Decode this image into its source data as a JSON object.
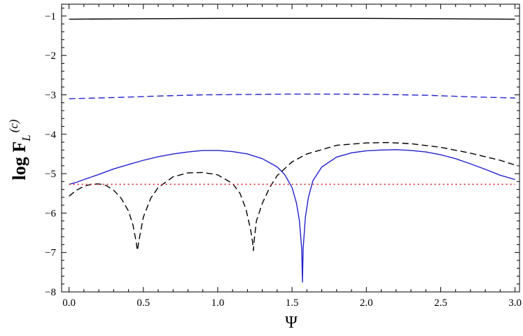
{
  "chart_data": {
    "type": "line",
    "title": "",
    "xlabel": "Ψ",
    "ylabel": {
      "text": "log F",
      "subscript": "L",
      "superscript": "(c)"
    },
    "xlim": [
      -0.05,
      3.03
    ],
    "ylim": [
      -8,
      -0.7
    ],
    "x_ticks": [
      {
        "value": 0.0,
        "label": "0.0"
      },
      {
        "value": 0.5,
        "label": "0.5"
      },
      {
        "value": 1.0,
        "label": "1.0"
      },
      {
        "value": 1.5,
        "label": "1.5"
      },
      {
        "value": 2.0,
        "label": "2.0"
      },
      {
        "value": 2.5,
        "label": "2.5"
      },
      {
        "value": 3.0,
        "label": "3.0"
      }
    ],
    "y_ticks": [
      {
        "value": -1,
        "label": "−1"
      },
      {
        "value": -2,
        "label": "−2"
      },
      {
        "value": -3,
        "label": "−3"
      },
      {
        "value": -4,
        "label": "−4"
      },
      {
        "value": -5,
        "label": "−5"
      },
      {
        "value": -6,
        "label": "−6"
      },
      {
        "value": -7,
        "label": "−7"
      },
      {
        "value": -8,
        "label": "−8"
      }
    ],
    "grid": false,
    "legend": "none",
    "series": [
      {
        "color": "#000000",
        "dash": "solid",
        "x": [
          0.0,
          0.5,
          1.0,
          1.5,
          2.0,
          2.5,
          3.0
        ],
        "y": [
          -1.08,
          -1.07,
          -1.06,
          -1.06,
          -1.06,
          -1.07,
          -1.08
        ]
      },
      {
        "color": "#2222cc",
        "dash": "dashed",
        "x": [
          0.0,
          0.3,
          0.6,
          0.9,
          1.2,
          1.5,
          1.8,
          2.1,
          2.4,
          2.7,
          3.0
        ],
        "y": [
          -3.1,
          -3.07,
          -3.03,
          -3.0,
          -2.99,
          -2.98,
          -2.98,
          -2.99,
          -3.01,
          -3.05,
          -3.08
        ]
      },
      {
        "color": "#2222cc",
        "dash": "solid",
        "x": [
          0.0,
          0.05,
          0.1,
          0.2,
          0.3,
          0.4,
          0.5,
          0.6,
          0.7,
          0.8,
          0.9,
          1.0,
          1.1,
          1.2,
          1.3,
          1.4,
          1.45,
          1.5,
          1.53,
          1.55,
          1.565,
          1.57,
          1.575,
          1.59,
          1.61,
          1.64,
          1.7,
          1.8,
          1.9,
          2.0,
          2.1,
          2.2,
          2.3,
          2.4,
          2.5,
          2.6,
          2.7,
          2.8,
          2.9,
          3.0
        ],
        "y": [
          -5.27,
          -5.22,
          -5.15,
          -5.02,
          -4.88,
          -4.77,
          -4.66,
          -4.57,
          -4.5,
          -4.45,
          -4.41,
          -4.41,
          -4.44,
          -4.5,
          -4.62,
          -4.83,
          -5.02,
          -5.35,
          -5.75,
          -6.2,
          -6.9,
          -7.75,
          -6.9,
          -6.1,
          -5.6,
          -5.18,
          -4.83,
          -4.58,
          -4.47,
          -4.42,
          -4.4,
          -4.39,
          -4.41,
          -4.45,
          -4.52,
          -4.62,
          -4.75,
          -4.89,
          -5.04,
          -5.15
        ]
      },
      {
        "color": "#000000",
        "dash": "dashed",
        "x": [
          0.0,
          0.05,
          0.1,
          0.15,
          0.2,
          0.25,
          0.3,
          0.35,
          0.4,
          0.43,
          0.45,
          0.46,
          0.47,
          0.5,
          0.55,
          0.6,
          0.7,
          0.8,
          0.9,
          1.0,
          1.1,
          1.15,
          1.19,
          1.22,
          1.235,
          1.24,
          1.245,
          1.26,
          1.3,
          1.35,
          1.4,
          1.5,
          1.6,
          1.8,
          2.0,
          2.15,
          2.3,
          2.5,
          2.7,
          2.9,
          3.0
        ],
        "y": [
          -5.57,
          -5.42,
          -5.32,
          -5.27,
          -5.26,
          -5.3,
          -5.42,
          -5.62,
          -5.95,
          -6.3,
          -6.7,
          -6.95,
          -6.7,
          -6.1,
          -5.62,
          -5.35,
          -5.08,
          -4.98,
          -4.97,
          -5.03,
          -5.25,
          -5.5,
          -5.9,
          -6.4,
          -6.75,
          -6.95,
          -6.7,
          -6.2,
          -5.75,
          -5.35,
          -5.05,
          -4.7,
          -4.5,
          -4.28,
          -4.22,
          -4.21,
          -4.24,
          -4.33,
          -4.48,
          -4.66,
          -4.78
        ]
      },
      {
        "color": "#dd2222",
        "dash": "dotted",
        "x": [
          0.0,
          3.0
        ],
        "y": [
          -5.27,
          -5.27
        ]
      }
    ]
  }
}
